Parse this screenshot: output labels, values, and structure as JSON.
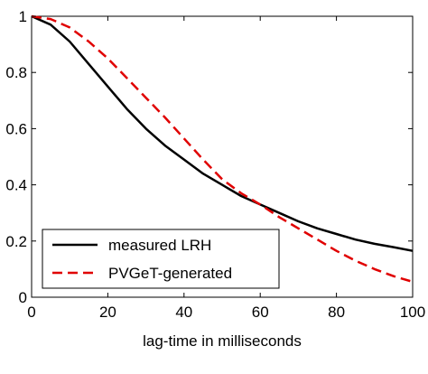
{
  "chart_data": {
    "type": "line",
    "xlabel": "lag-time in milliseconds",
    "ylabel": "",
    "xlim": [
      0,
      100
    ],
    "ylim": [
      0,
      1
    ],
    "x_ticks": [
      0,
      20,
      40,
      60,
      80,
      100
    ],
    "y_ticks": [
      0,
      0.2,
      0.4,
      0.6,
      0.8,
      1
    ],
    "x_tick_labels": [
      "0",
      "20",
      "40",
      "60",
      "80",
      "100"
    ],
    "y_tick_labels": [
      "0",
      "0.2",
      "0.4",
      "0.6",
      "0.8",
      "1"
    ],
    "grid": false,
    "legend_position": "bottom-left",
    "series": [
      {
        "name": "measured LRH",
        "color": "#000000",
        "dash": "solid",
        "x": [
          0,
          5,
          10,
          15,
          20,
          25,
          30,
          35,
          40,
          45,
          50,
          55,
          60,
          65,
          70,
          75,
          80,
          85,
          90,
          95,
          100
        ],
        "values": [
          1.0,
          0.97,
          0.91,
          0.83,
          0.75,
          0.67,
          0.6,
          0.54,
          0.49,
          0.44,
          0.4,
          0.36,
          0.33,
          0.3,
          0.27,
          0.245,
          0.225,
          0.205,
          0.19,
          0.178,
          0.165
        ]
      },
      {
        "name": "PVGeT-generated",
        "color": "#e00000",
        "dash": "dashed",
        "x": [
          0,
          5,
          10,
          15,
          20,
          25,
          30,
          35,
          40,
          45,
          50,
          55,
          60,
          65,
          70,
          75,
          80,
          85,
          90,
          95,
          100
        ],
        "values": [
          1.0,
          0.99,
          0.96,
          0.91,
          0.85,
          0.78,
          0.71,
          0.64,
          0.565,
          0.49,
          0.42,
          0.37,
          0.33,
          0.285,
          0.245,
          0.205,
          0.165,
          0.13,
          0.1,
          0.075,
          0.055
        ]
      }
    ]
  },
  "colors": {
    "axis": "#000000",
    "background": "#ffffff"
  }
}
